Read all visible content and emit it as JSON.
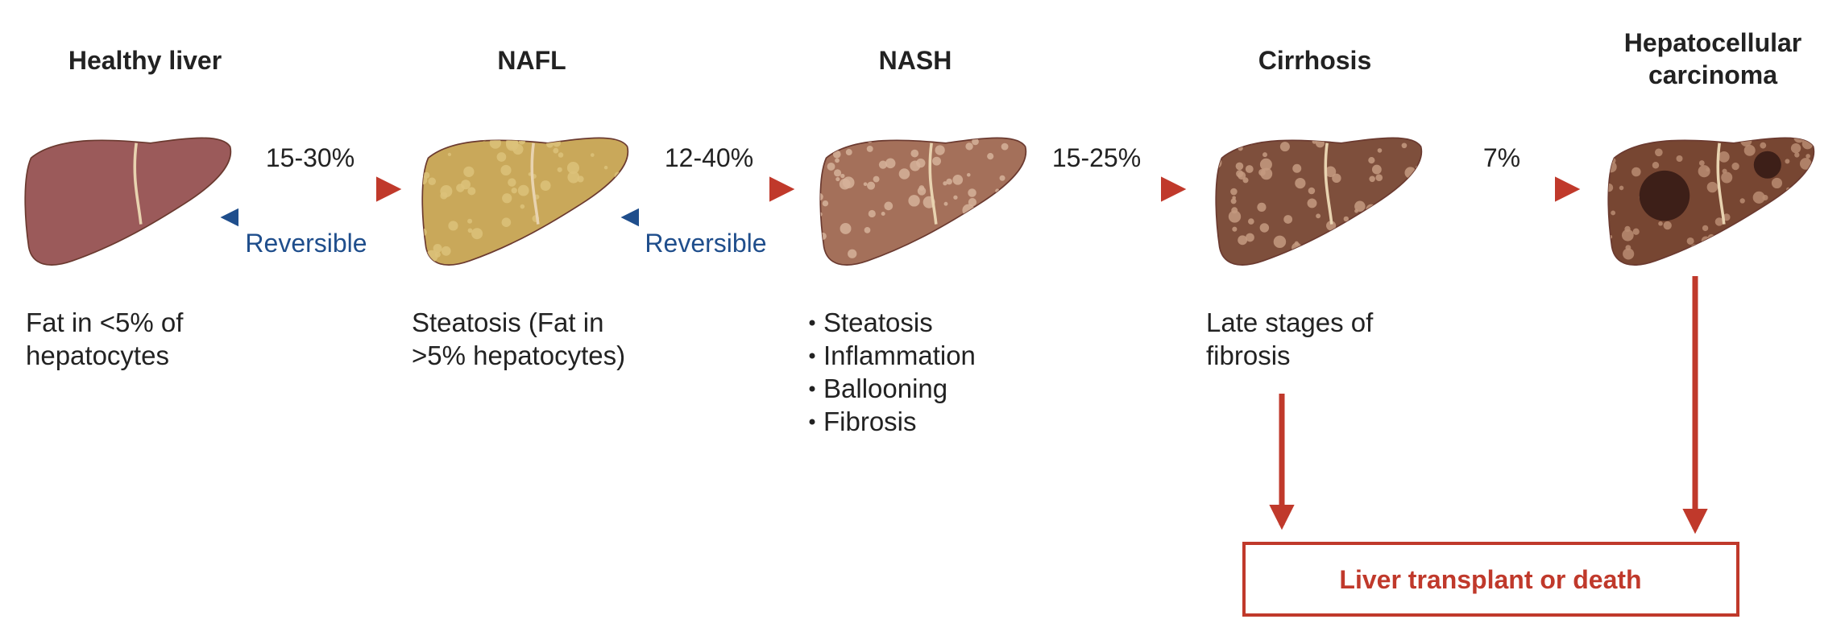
{
  "stages": [
    {
      "title": "Healthy liver",
      "description": [
        "Fat in <5% of",
        "hepatocytes"
      ]
    },
    {
      "title": "NAFL",
      "description": [
        "Steatosis (Fat in",
        ">5% hepatocytes)"
      ]
    },
    {
      "title": "NASH",
      "description": [
        "Steatosis",
        "Inflammation",
        "Ballooning",
        "Fibrosis"
      ]
    },
    {
      "title": "Cirrhosis",
      "description": [
        "Late stages of",
        "fibrosis"
      ]
    },
    {
      "title": [
        "Hepatocellular",
        "carcinoma"
      ]
    }
  ],
  "transitions": [
    {
      "label": "15-30%",
      "reverse_label": "Reversible"
    },
    {
      "label": "12-40%",
      "reverse_label": "Reversible"
    },
    {
      "label": "15-25%"
    },
    {
      "label": "7%"
    }
  ],
  "outcome": "Liver transplant or death"
}
